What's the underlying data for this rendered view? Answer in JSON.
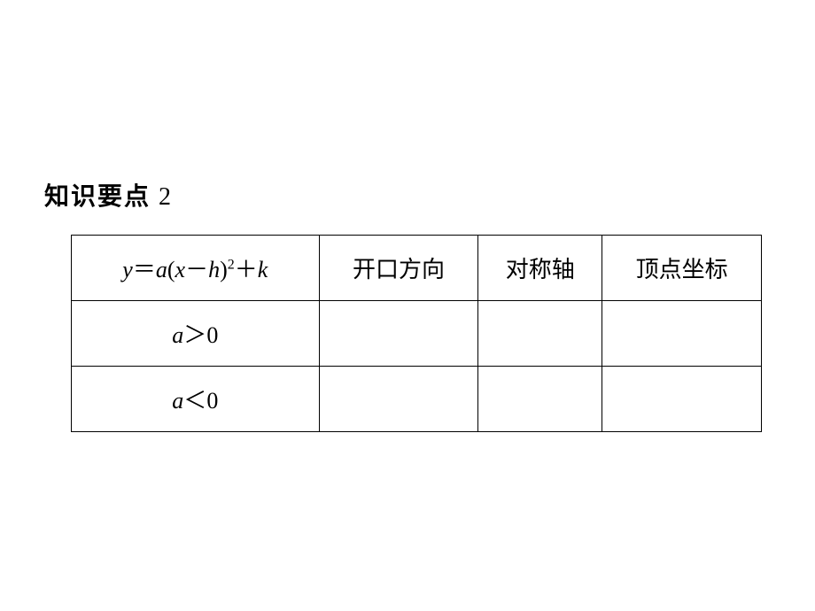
{
  "section": {
    "title_prefix": "知识要点",
    "title_num": "2"
  },
  "table": {
    "columns": [
      {
        "formula_parts": {
          "y": "y",
          "eq": "＝",
          "a": "a",
          "lp": "(",
          "x": "x",
          "minus": "－",
          "h": "h",
          "rp": ")",
          "exp": "2",
          "plus": "＋",
          "k": "k"
        }
      },
      {
        "label": "开口方向"
      },
      {
        "label": "对称轴"
      },
      {
        "label": "顶点坐标"
      }
    ],
    "rows": [
      {
        "label_parts": {
          "a": "a",
          "cmp": "＞",
          "zero": "0"
        },
        "cells": [
          "",
          "",
          ""
        ],
        "vertex_hint": ""
      },
      {
        "label_parts": {
          "a": "a",
          "cmp": "＜",
          "zero": "0"
        },
        "cells": [
          "",
          "",
          ""
        ],
        "vertex_hint": ""
      }
    ]
  },
  "style": {
    "background": "#ffffff",
    "text_color": "#000000",
    "border_color": "#000000",
    "title_fontsize": 28,
    "cell_fontsize": 26
  }
}
